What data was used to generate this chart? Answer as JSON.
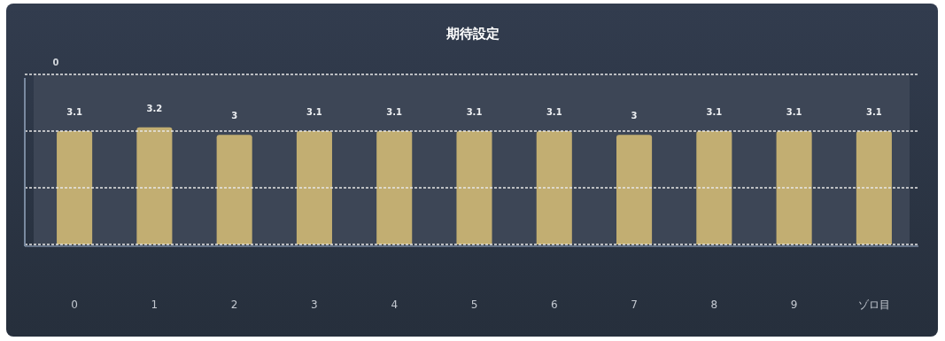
{
  "chart_data": {
    "type": "bar",
    "title": "期待設定",
    "categories": [
      "0",
      "1",
      "2",
      "3",
      "4",
      "5",
      "6",
      "7",
      "8",
      "9",
      "ゾロ目"
    ],
    "values": [
      3.1,
      3.2,
      3,
      3.1,
      3.1,
      3.1,
      3.1,
      3,
      3.1,
      3.1,
      3.1
    ],
    "color": "#c2ae72",
    "ylim": [
      0,
      4.65
    ],
    "yticks": [
      {
        "value": 0,
        "label": null
      },
      {
        "value": 1.55,
        "label": null
      },
      {
        "value": 3.1,
        "label": null
      },
      {
        "value": 4.65,
        "label": null
      }
    ],
    "data_labels": true,
    "grid": "y",
    "annotations": [
      "0"
    ]
  }
}
